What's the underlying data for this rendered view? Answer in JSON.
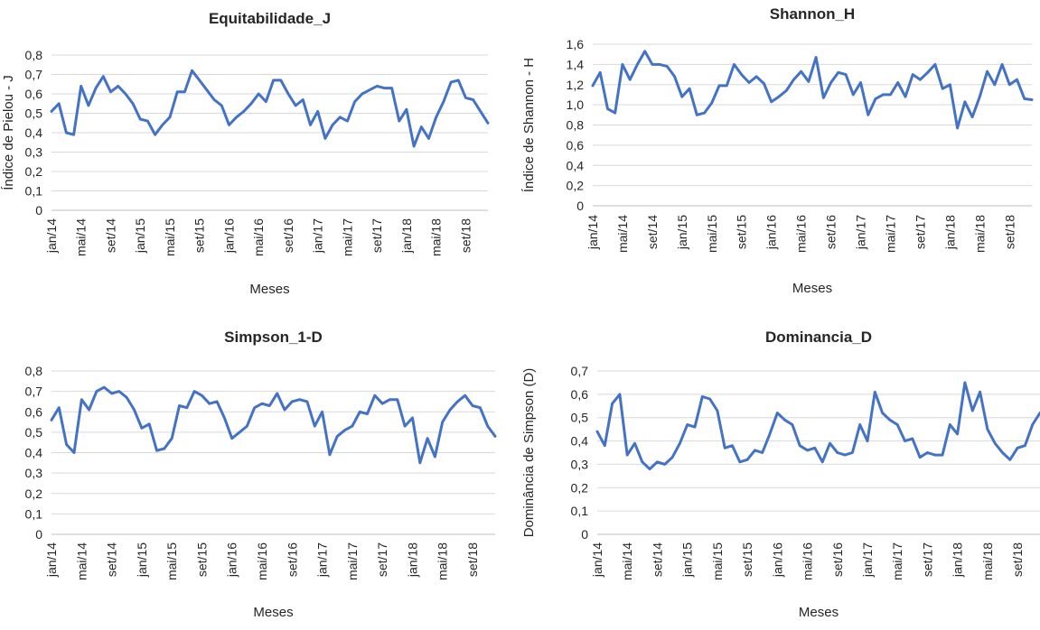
{
  "chart_data": [
    {
      "type": "line",
      "title": "Equitabilidade_J",
      "xlabel": "Meses",
      "ylabel": "Índice de Pielou - J",
      "ylim": [
        0,
        0.8
      ],
      "ytick_step": 0.1,
      "ytick_decimals": 1,
      "x_tick_labels": [
        "jan/14",
        "mai/14",
        "set/14",
        "jan/15",
        "mai/15",
        "set/15",
        "jan/16",
        "mai/16",
        "set/16",
        "jan/17",
        "mai/17",
        "set/17",
        "jan/18",
        "mai/18",
        "set/18"
      ],
      "grid": true,
      "line_color": "#4472C4",
      "series": [
        {
          "values": [
            0.51,
            0.55,
            0.4,
            0.39,
            0.64,
            0.54,
            0.63,
            0.69,
            0.61,
            0.64,
            0.6,
            0.55,
            0.47,
            0.46,
            0.39,
            0.44,
            0.48,
            0.61,
            0.61,
            0.72,
            0.67,
            0.62,
            0.57,
            0.54,
            0.44,
            0.48,
            0.51,
            0.55,
            0.6,
            0.56,
            0.67,
            0.67,
            0.6,
            0.54,
            0.57,
            0.44,
            0.51,
            0.37,
            0.44,
            0.48,
            0.46,
            0.56,
            0.6,
            0.62,
            0.64,
            0.63,
            0.63,
            0.46,
            0.52,
            0.33,
            0.43,
            0.37,
            0.48,
            0.56,
            0.66,
            0.67,
            0.58,
            0.57,
            0.51,
            0.45
          ]
        }
      ]
    },
    {
      "type": "line",
      "title": "Shannon_H",
      "xlabel": "Meses",
      "ylabel": "Índice de Shannon - H",
      "ylim": [
        0,
        1.6
      ],
      "ytick_step": 0.2,
      "ytick_decimals": 1,
      "x_tick_labels": [
        "jan/14",
        "mai/14",
        "set/14",
        "jan/15",
        "mai/15",
        "set/15",
        "jan/16",
        "mai/16",
        "set/16",
        "jan/17",
        "mai/17",
        "set/17",
        "jan/18",
        "mai/18",
        "set/18"
      ],
      "grid": true,
      "line_color": "#4472C4",
      "series": [
        {
          "values": [
            1.19,
            1.32,
            0.96,
            0.92,
            1.4,
            1.25,
            1.4,
            1.53,
            1.4,
            1.4,
            1.38,
            1.28,
            1.08,
            1.16,
            0.9,
            0.92,
            1.02,
            1.19,
            1.19,
            1.4,
            1.3,
            1.22,
            1.28,
            1.21,
            1.03,
            1.08,
            1.14,
            1.25,
            1.33,
            1.23,
            1.47,
            1.07,
            1.22,
            1.32,
            1.3,
            1.1,
            1.22,
            0.9,
            1.06,
            1.1,
            1.1,
            1.22,
            1.08,
            1.3,
            1.25,
            1.32,
            1.4,
            1.16,
            1.2,
            0.77,
            1.03,
            0.88,
            1.08,
            1.33,
            1.2,
            1.4,
            1.2,
            1.25,
            1.06,
            1.05
          ]
        }
      ]
    },
    {
      "type": "line",
      "title": "Simpson_1-D",
      "xlabel": "Meses",
      "ylabel": "",
      "ylim": [
        0,
        0.8
      ],
      "ytick_step": 0.1,
      "ytick_decimals": 1,
      "x_tick_labels": [
        "jan/14",
        "mai/14",
        "set/14",
        "jan/15",
        "mai/15",
        "set/15",
        "jan/16",
        "mai/16",
        "set/16",
        "jan/17",
        "mai/17",
        "set/17",
        "jan/18",
        "mai/18",
        "set/18"
      ],
      "grid": true,
      "line_color": "#4472C4",
      "series": [
        {
          "values": [
            0.56,
            0.62,
            0.44,
            0.4,
            0.66,
            0.61,
            0.7,
            0.72,
            0.69,
            0.7,
            0.67,
            0.61,
            0.52,
            0.54,
            0.41,
            0.42,
            0.47,
            0.63,
            0.62,
            0.7,
            0.68,
            0.64,
            0.65,
            0.57,
            0.47,
            0.5,
            0.53,
            0.62,
            0.64,
            0.63,
            0.69,
            0.61,
            0.65,
            0.66,
            0.65,
            0.53,
            0.6,
            0.39,
            0.48,
            0.51,
            0.53,
            0.6,
            0.59,
            0.68,
            0.64,
            0.66,
            0.66,
            0.53,
            0.57,
            0.35,
            0.47,
            0.38,
            0.55,
            0.61,
            0.65,
            0.68,
            0.63,
            0.62,
            0.53,
            0.48
          ]
        }
      ]
    },
    {
      "type": "line",
      "title": "Dominancia_D",
      "xlabel": "Meses",
      "ylabel": "Dominância de Simpson (D)",
      "ylim": [
        0,
        0.7
      ],
      "ytick_step": 0.1,
      "ytick_decimals": 1,
      "x_tick_labels": [
        "jan/14",
        "mai/14",
        "set/14",
        "jan/15",
        "mai/15",
        "set/15",
        "jan/16",
        "mai/16",
        "set/16",
        "jan/17",
        "mai/17",
        "set/17",
        "jan/18",
        "mai/18",
        "set/18"
      ],
      "grid": true,
      "line_color": "#4472C4",
      "series": [
        {
          "values": [
            0.44,
            0.38,
            0.56,
            0.6,
            0.34,
            0.39,
            0.31,
            0.28,
            0.31,
            0.3,
            0.33,
            0.39,
            0.47,
            0.46,
            0.59,
            0.58,
            0.53,
            0.37,
            0.38,
            0.31,
            0.32,
            0.36,
            0.35,
            0.43,
            0.52,
            0.49,
            0.47,
            0.38,
            0.36,
            0.37,
            0.31,
            0.39,
            0.35,
            0.34,
            0.35,
            0.47,
            0.4,
            0.61,
            0.52,
            0.49,
            0.47,
            0.4,
            0.41,
            0.33,
            0.35,
            0.34,
            0.34,
            0.47,
            0.43,
            0.65,
            0.53,
            0.61,
            0.45,
            0.39,
            0.35,
            0.32,
            0.37,
            0.38,
            0.47,
            0.52
          ]
        }
      ]
    }
  ]
}
